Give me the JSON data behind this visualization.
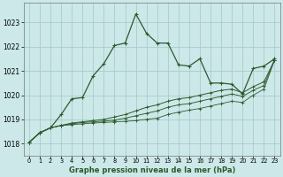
{
  "title": "Graphe pression niveau de la mer (hPa)",
  "bg_color": "#cce8e8",
  "grid_color": "#aacccc",
  "line_color": "#2d5a2d",
  "xlim": [
    -0.5,
    23.5
  ],
  "ylim": [
    1017.5,
    1023.8
  ],
  "xticks": [
    0,
    1,
    2,
    3,
    4,
    5,
    6,
    7,
    8,
    9,
    10,
    11,
    12,
    13,
    14,
    15,
    16,
    17,
    18,
    19,
    20,
    21,
    22,
    23
  ],
  "yticks": [
    1018,
    1019,
    1020,
    1021,
    1022,
    1023
  ],
  "series": [
    [
      1018.05,
      1018.45,
      1018.65,
      1019.2,
      1019.85,
      1019.9,
      1020.8,
      1021.3,
      1022.05,
      1022.15,
      1023.35,
      1022.55,
      1022.15,
      1022.15,
      1021.25,
      1021.2,
      1021.5,
      1020.5,
      1020.5,
      1020.45,
      1020.05,
      1021.1,
      1021.2,
      1021.5
    ],
    [
      1018.05,
      1018.45,
      1018.65,
      1018.75,
      1018.85,
      1018.9,
      1018.95,
      1019.0,
      1019.1,
      1019.2,
      1019.35,
      1019.5,
      1019.6,
      1019.75,
      1019.85,
      1019.9,
      1020.0,
      1020.1,
      1020.2,
      1020.25,
      1020.1,
      1020.35,
      1020.55,
      1021.45
    ],
    [
      1018.05,
      1018.45,
      1018.65,
      1018.75,
      1018.82,
      1018.87,
      1018.9,
      1018.93,
      1018.97,
      1019.05,
      1019.15,
      1019.25,
      1019.35,
      1019.5,
      1019.6,
      1019.65,
      1019.75,
      1019.85,
      1019.95,
      1020.05,
      1019.95,
      1020.2,
      1020.4,
      1021.45
    ],
    [
      1018.05,
      1018.45,
      1018.65,
      1018.75,
      1018.78,
      1018.82,
      1018.85,
      1018.87,
      1018.9,
      1018.92,
      1018.95,
      1019.0,
      1019.05,
      1019.2,
      1019.3,
      1019.38,
      1019.45,
      1019.55,
      1019.65,
      1019.75,
      1019.7,
      1020.0,
      1020.25,
      1021.45
    ]
  ]
}
